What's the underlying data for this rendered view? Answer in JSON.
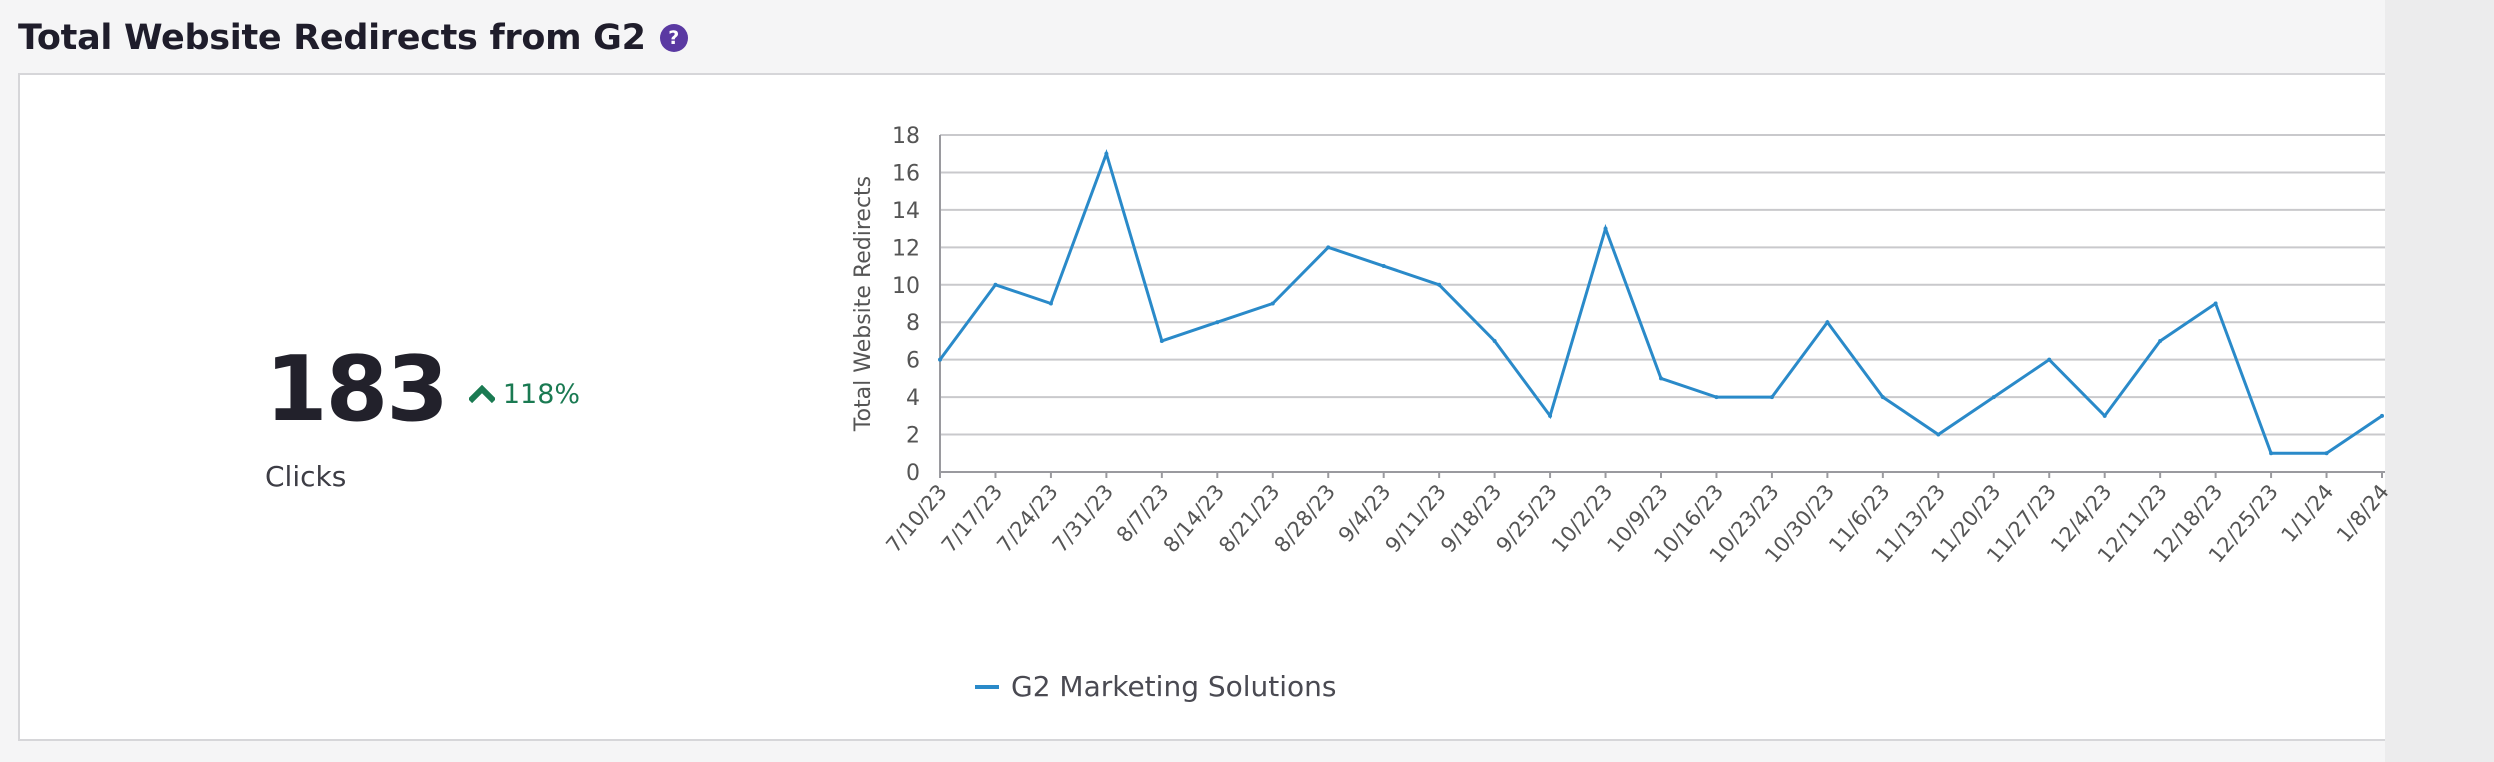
{
  "card": {
    "title": "Total Website Redirects from G2",
    "help_icon": "question-circle-icon"
  },
  "kpi": {
    "value": "183",
    "delta_icon": "chevron-up-icon",
    "delta": "118%",
    "label": "Clicks",
    "colors": {
      "delta": "#1a7a52"
    }
  },
  "chart_data": {
    "type": "line",
    "ylabel": "Total Website Redirects",
    "xlabel": "",
    "ylim": [
      0,
      18
    ],
    "yticks": [
      0,
      2,
      4,
      6,
      8,
      10,
      12,
      14,
      16,
      18
    ],
    "grid": true,
    "legend_position": "bottom",
    "categories": [
      "7/10/23",
      "7/17/23",
      "7/24/23",
      "7/31/23",
      "8/7/23",
      "8/14/23",
      "8/21/23",
      "8/28/23",
      "9/4/23",
      "9/11/23",
      "9/18/23",
      "9/25/23",
      "10/2/23",
      "10/9/23",
      "10/16/23",
      "10/23/23",
      "10/30/23",
      "11/6/23",
      "11/13/23",
      "11/20/23",
      "11/27/23",
      "12/4/23",
      "12/11/23",
      "12/18/23",
      "12/25/23",
      "1/1/24",
      "1/8/24"
    ],
    "series": [
      {
        "name": "G2 Marketing Solutions",
        "color": "#2a8ac9",
        "values": [
          6,
          10,
          9,
          17,
          7,
          8,
          9,
          12,
          11,
          10,
          7,
          3,
          13,
          5,
          4,
          4,
          8,
          4,
          2,
          4,
          6,
          3,
          7,
          9,
          1,
          1,
          3
        ]
      }
    ]
  }
}
